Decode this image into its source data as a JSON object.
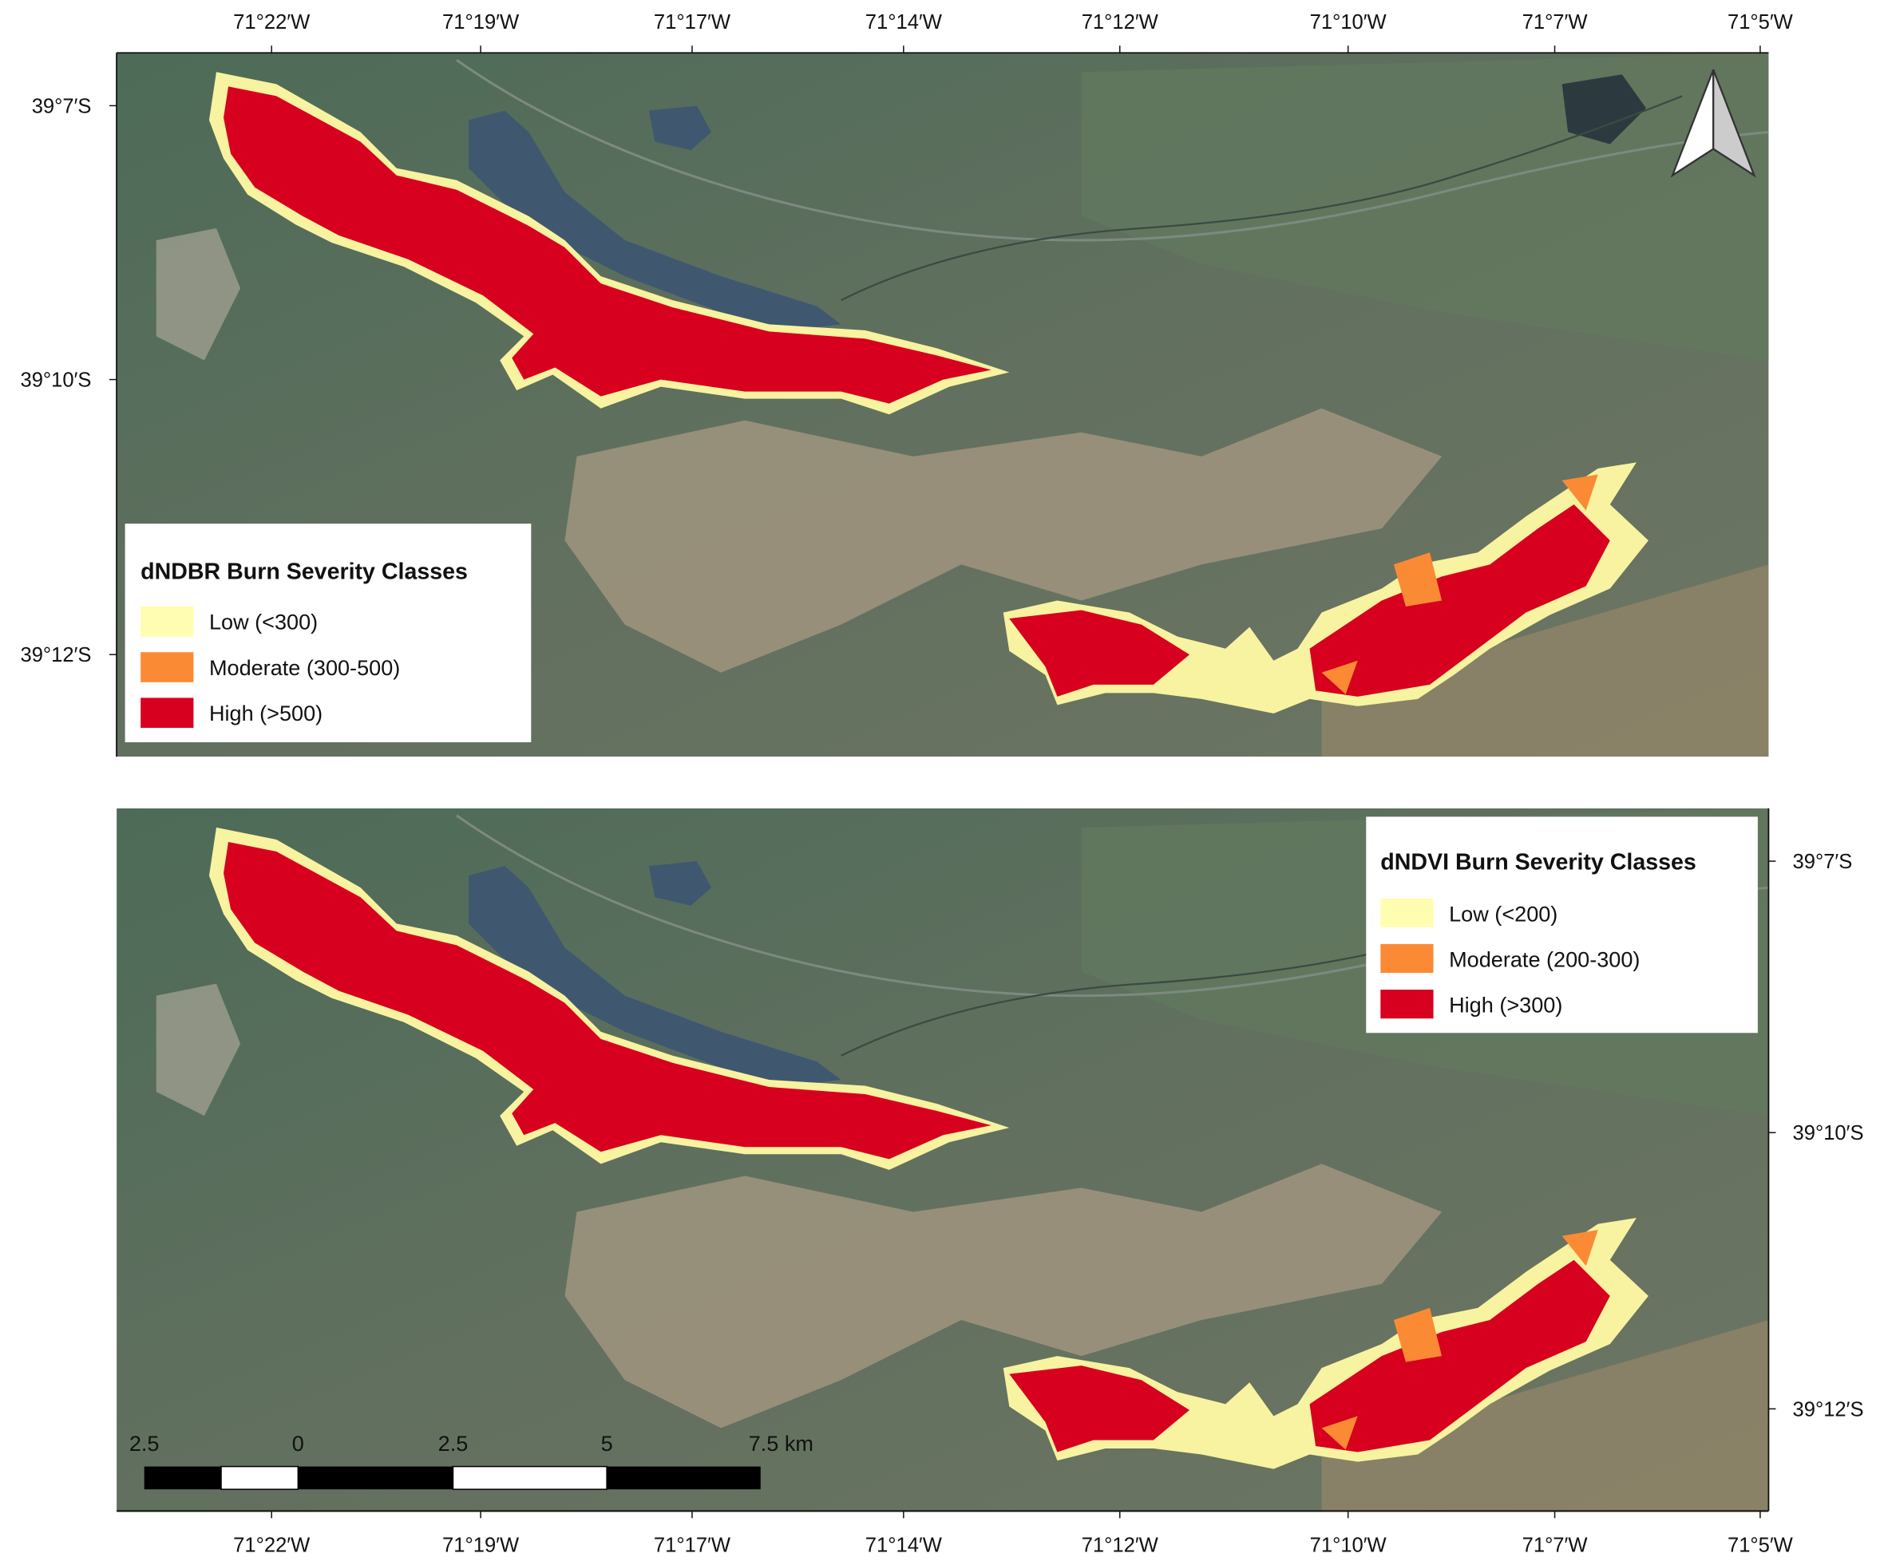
{
  "lon_ticks": [
    "71°22′W",
    "71°19′W",
    "71°17′W",
    "71°14′W",
    "71°12′W",
    "71°10′W",
    "71°7′W",
    "71°5′W"
  ],
  "panels": [
    {
      "lat_ticks": [
        "39°7′S",
        "39°10′S",
        "39°12′S"
      ],
      "legend": {
        "title": "dNDBR Burn Severity Classes",
        "items": [
          "Low (<300)",
          "Moderate (300-500)",
          "High (>500)"
        ]
      }
    },
    {
      "lat_ticks": [
        "39°7′S",
        "39°10′S",
        "39°12′S"
      ],
      "legend": {
        "title": "dNDVI Burn Severity Classes",
        "items": [
          "Low (<200)",
          "Moderate (200-300)",
          "High (>300)"
        ]
      }
    }
  ],
  "scale_bar": {
    "labels": [
      "2.5",
      "0",
      "2.5",
      "5",
      "7.5 km"
    ]
  }
}
